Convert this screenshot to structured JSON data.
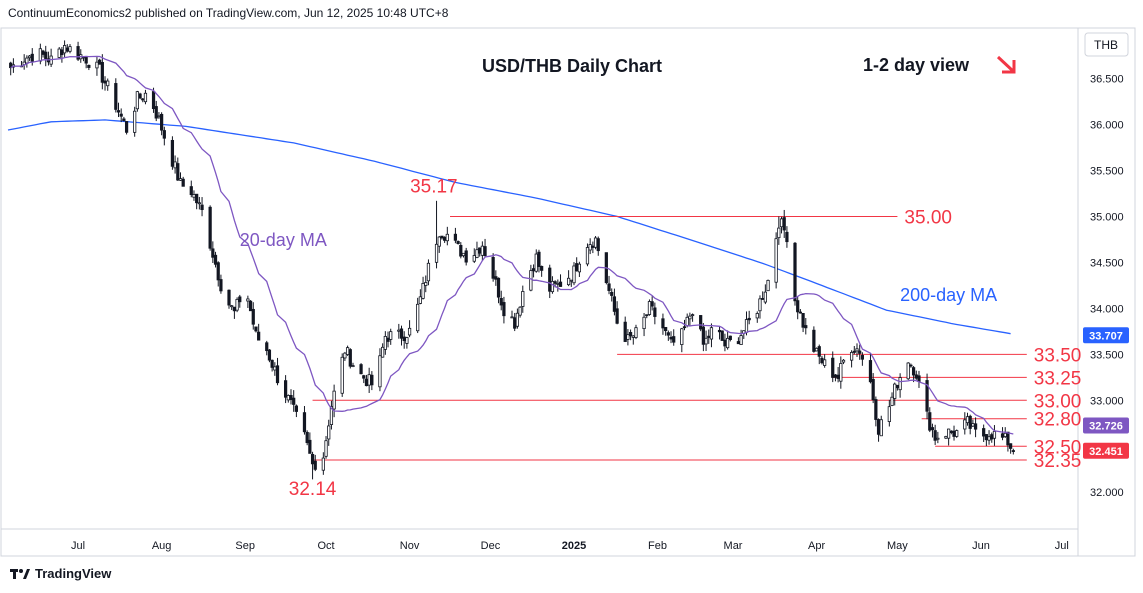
{
  "header": {
    "published": "ContinuumEconomics2 published on TradingView.com, Jun 12, 2025 10:48 UTC+8"
  },
  "footer": {
    "brand": "TradingView"
  },
  "chart_data": {
    "type": "candlestick",
    "title": "USD/THB Daily Chart",
    "view_label": "1-2 day view",
    "currency": "THB",
    "colors": {
      "up": "#089981",
      "down": "#f23645",
      "ma20": "#7e57c2",
      "ma200": "#2962ff",
      "level": "#f23645",
      "candle": "#131722"
    },
    "y_ticks": [
      32.0,
      32.5,
      33.0,
      33.5,
      34.0,
      34.5,
      35.0,
      35.5,
      36.0,
      36.5
    ],
    "y_tick_labels": [
      "32.000",
      "32.500",
      "33.000",
      "33.500",
      "34.000",
      "34.500",
      "35.000",
      "35.500",
      "36.000",
      "36.500"
    ],
    "ylim": [
      31.6,
      37.05
    ],
    "x_labels": [
      "Jul",
      "Aug",
      "Sep",
      "Oct",
      "Nov",
      "Dec",
      "2025",
      "Feb",
      "Mar",
      "Apr",
      "May",
      "Jun",
      "Jul"
    ],
    "x_label_days": [
      0,
      31,
      62,
      92,
      123,
      153,
      184,
      215,
      243,
      274,
      304,
      335,
      365
    ],
    "xlim": [
      -26,
      371
    ],
    "last_day": 347,
    "anchors": [
      [
        -25,
        36.62
      ],
      [
        -20,
        36.72
      ],
      [
        -15,
        36.78
      ],
      [
        -10,
        36.7
      ],
      [
        -5,
        36.86
      ],
      [
        -1,
        36.78
      ],
      [
        3,
        36.72
      ],
      [
        8,
        36.58
      ],
      [
        13,
        36.28
      ],
      [
        18,
        35.95
      ],
      [
        22,
        36.28
      ],
      [
        26,
        36.35
      ],
      [
        30,
        36.05
      ],
      [
        34,
        35.7
      ],
      [
        38,
        35.35
      ],
      [
        42,
        35.28
      ],
      [
        46,
        35.05
      ],
      [
        50,
        34.6
      ],
      [
        54,
        34.15
      ],
      [
        58,
        33.95
      ],
      [
        62,
        34.25
      ],
      [
        66,
        33.7
      ],
      [
        70,
        33.55
      ],
      [
        74,
        33.25
      ],
      [
        79,
        32.95
      ],
      [
        84,
        32.6
      ],
      [
        87,
        32.3
      ],
      [
        91,
        32.4
      ],
      [
        94,
        32.95
      ],
      [
        99,
        33.55
      ],
      [
        104,
        33.3
      ],
      [
        110,
        33.15
      ],
      [
        114,
        33.7
      ],
      [
        119,
        33.7
      ],
      [
        123,
        33.75
      ],
      [
        127,
        34.1
      ],
      [
        131,
        34.55
      ],
      [
        134,
        34.85
      ],
      [
        137,
        34.8
      ],
      [
        141,
        34.65
      ],
      [
        145,
        34.55
      ],
      [
        150,
        34.7
      ],
      [
        153,
        34.45
      ],
      [
        158,
        34.0
      ],
      [
        162,
        33.85
      ],
      [
        166,
        34.3
      ],
      [
        170,
        34.55
      ],
      [
        174,
        34.2
      ],
      [
        178,
        34.25
      ],
      [
        184,
        34.4
      ],
      [
        188,
        34.7
      ],
      [
        192,
        34.75
      ],
      [
        196,
        34.3
      ],
      [
        200,
        33.85
      ],
      [
        204,
        33.65
      ],
      [
        208,
        33.75
      ],
      [
        212,
        34.0
      ],
      [
        216,
        33.85
      ],
      [
        220,
        33.6
      ],
      [
        224,
        33.7
      ],
      [
        228,
        34.0
      ],
      [
        232,
        33.6
      ],
      [
        236,
        33.8
      ],
      [
        240,
        33.6
      ],
      [
        244,
        33.65
      ],
      [
        248,
        33.8
      ],
      [
        252,
        34.0
      ],
      [
        256,
        34.3
      ],
      [
        260,
        34.95
      ],
      [
        263,
        34.8
      ],
      [
        266,
        34.1
      ],
      [
        270,
        33.75
      ],
      [
        274,
        33.5
      ],
      [
        278,
        33.35
      ],
      [
        282,
        33.25
      ],
      [
        286,
        33.6
      ],
      [
        290,
        33.55
      ],
      [
        294,
        33.2
      ],
      [
        297,
        32.7
      ],
      [
        300,
        32.85
      ],
      [
        304,
        33.2
      ],
      [
        308,
        33.45
      ],
      [
        311,
        33.3
      ],
      [
        314,
        32.9
      ],
      [
        318,
        32.6
      ],
      [
        322,
        32.65
      ],
      [
        326,
        32.65
      ],
      [
        330,
        32.75
      ],
      [
        334,
        32.6
      ],
      [
        338,
        32.65
      ],
      [
        342,
        32.6
      ],
      [
        345,
        32.55
      ],
      [
        347,
        32.45
      ]
    ],
    "ma200_anchors": [
      [
        -26,
        35.94
      ],
      [
        -10,
        36.03
      ],
      [
        10,
        36.05
      ],
      [
        40,
        35.98
      ],
      [
        80,
        35.8
      ],
      [
        110,
        35.6
      ],
      [
        140,
        35.37
      ],
      [
        170,
        35.2
      ],
      [
        200,
        35.0
      ],
      [
        230,
        34.72
      ],
      [
        255,
        34.48
      ],
      [
        275,
        34.26
      ],
      [
        300,
        33.98
      ],
      [
        325,
        33.83
      ],
      [
        347,
        33.72
      ]
    ],
    "levels": [
      {
        "label": "35.00",
        "value": 35.0,
        "from_day": 138,
        "to_day": 304
      },
      {
        "label": "33.50",
        "value": 33.5,
        "from_day": 200,
        "to_day": 352
      },
      {
        "label": "33.25",
        "value": 33.25,
        "from_day": 280,
        "to_day": 352
      },
      {
        "label": "33.00",
        "value": 33.0,
        "from_day": 87,
        "to_day": 352
      },
      {
        "label": "32.80",
        "value": 32.8,
        "from_day": 313,
        "to_day": 352
      },
      {
        "label": "32.50",
        "value": 32.5,
        "from_day": 318,
        "to_day": 352
      },
      {
        "label": "32.35",
        "value": 32.35,
        "from_day": 87,
        "to_day": 352
      }
    ],
    "annotations": [
      {
        "label": "35.17",
        "day": 132,
        "value": 35.26
      },
      {
        "label": "32.14",
        "day": 87,
        "value": 31.97
      },
      {
        "label": "20-day MA",
        "day": 60,
        "value": 34.68
      },
      {
        "label": "200-day MA",
        "day": 305,
        "value": 34.08
      }
    ],
    "price_tags": [
      {
        "label": "33.707",
        "value": 33.707,
        "color": "#2962ff"
      },
      {
        "label": "32.726",
        "value": 32.726,
        "color": "#7e57c2"
      },
      {
        "label": "32.451",
        "value": 32.451,
        "color": "#f23645"
      }
    ],
    "partially_hidden_tag": {
      "label": "32.500",
      "value": 32.5
    },
    "grid": false
  }
}
